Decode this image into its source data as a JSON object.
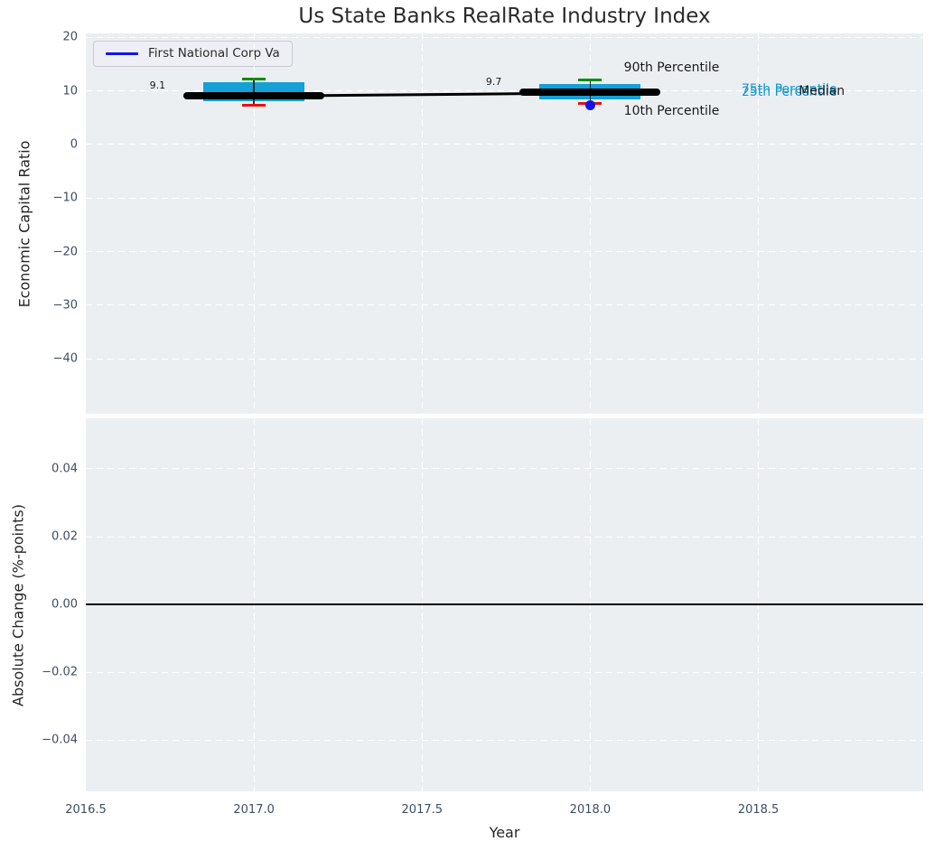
{
  "title": "Us State Banks RealRate Industry Index",
  "legend": {
    "label": "First National Corp Va",
    "line_color": "#1414e8"
  },
  "xaxis": {
    "label": "Year",
    "range": [
      2016.5,
      2018.99
    ],
    "tick_values": [
      2016.5,
      2017.0,
      2017.5,
      2018.0,
      2018.5
    ],
    "tick_labels": [
      "2016.5",
      "2017.0",
      "2017.5",
      "2018.0",
      "2018.5"
    ],
    "gridlines": [
      2017.0,
      2017.5,
      2018.0,
      2018.5
    ]
  },
  "chart_data": [
    {
      "type": "box",
      "title": "Us State Banks RealRate Industry Index",
      "ylabel": "Economic Capital Ratio",
      "ylim": [
        -50.25,
        20.74
      ],
      "grid": true,
      "legend_position": "upper left",
      "ytick_values": [
        20,
        10,
        0,
        -10,
        -20,
        -30,
        -40
      ],
      "ytick_labels": [
        "20",
        "10",
        "0",
        "−10",
        "−20",
        "−30",
        "−40"
      ],
      "boxes": [
        {
          "x": 2017,
          "median": 9.1,
          "median_label": "9.1",
          "q1": 8.1,
          "q3": 11.6,
          "p10": 7.4,
          "p90": 12.3
        },
        {
          "x": 2018,
          "median": 9.7,
          "median_label": "9.7",
          "q1": 8.4,
          "q3": 11.3,
          "p10": 7.7,
          "p90": 12.1
        }
      ],
      "median_trend": [
        {
          "x": 2017,
          "y": 9.1
        },
        {
          "x": 2018,
          "y": 9.7
        }
      ],
      "company_series": {
        "name": "First National Corp Va",
        "points": [
          {
            "x": 2018,
            "y": 7.4
          }
        ]
      },
      "annotations": [
        {
          "text": "90th Percentile",
          "x": 2018.1,
          "y": 14.3,
          "color": "#1a1a1a"
        },
        {
          "text": "10th Percentile",
          "x": 2018.1,
          "y": 6.3,
          "color": "#1a1a1a"
        },
        {
          "text": "75th Percentile",
          "x": 2018.45,
          "y": 10.35,
          "color": "#1699cf"
        },
        {
          "text": "25th Percentile",
          "x": 2018.45,
          "y": 9.75,
          "color": "#1699cf"
        },
        {
          "text": "Median",
          "x": 2018.62,
          "y": 10.0,
          "color": "#1a1a1a"
        }
      ],
      "colors": {
        "box": "#15a0d6",
        "median_line": "#000000",
        "p90_cap": "#0a8f0f",
        "p10_cap": "#e81010",
        "company_marker": "#1414e8",
        "whisker": "#2a2a2a"
      }
    },
    {
      "type": "bar",
      "ylabel": "Absolute Change (%-points)",
      "ylim": [
        -0.0551,
        0.0549
      ],
      "grid": true,
      "ytick_values": [
        0.04,
        0.02,
        0.0,
        -0.02,
        -0.04
      ],
      "ytick_labels": [
        "0.04",
        "0.02",
        "0.00",
        "−0.02",
        "−0.04"
      ],
      "values": [],
      "zero_line": 0.0
    }
  ]
}
